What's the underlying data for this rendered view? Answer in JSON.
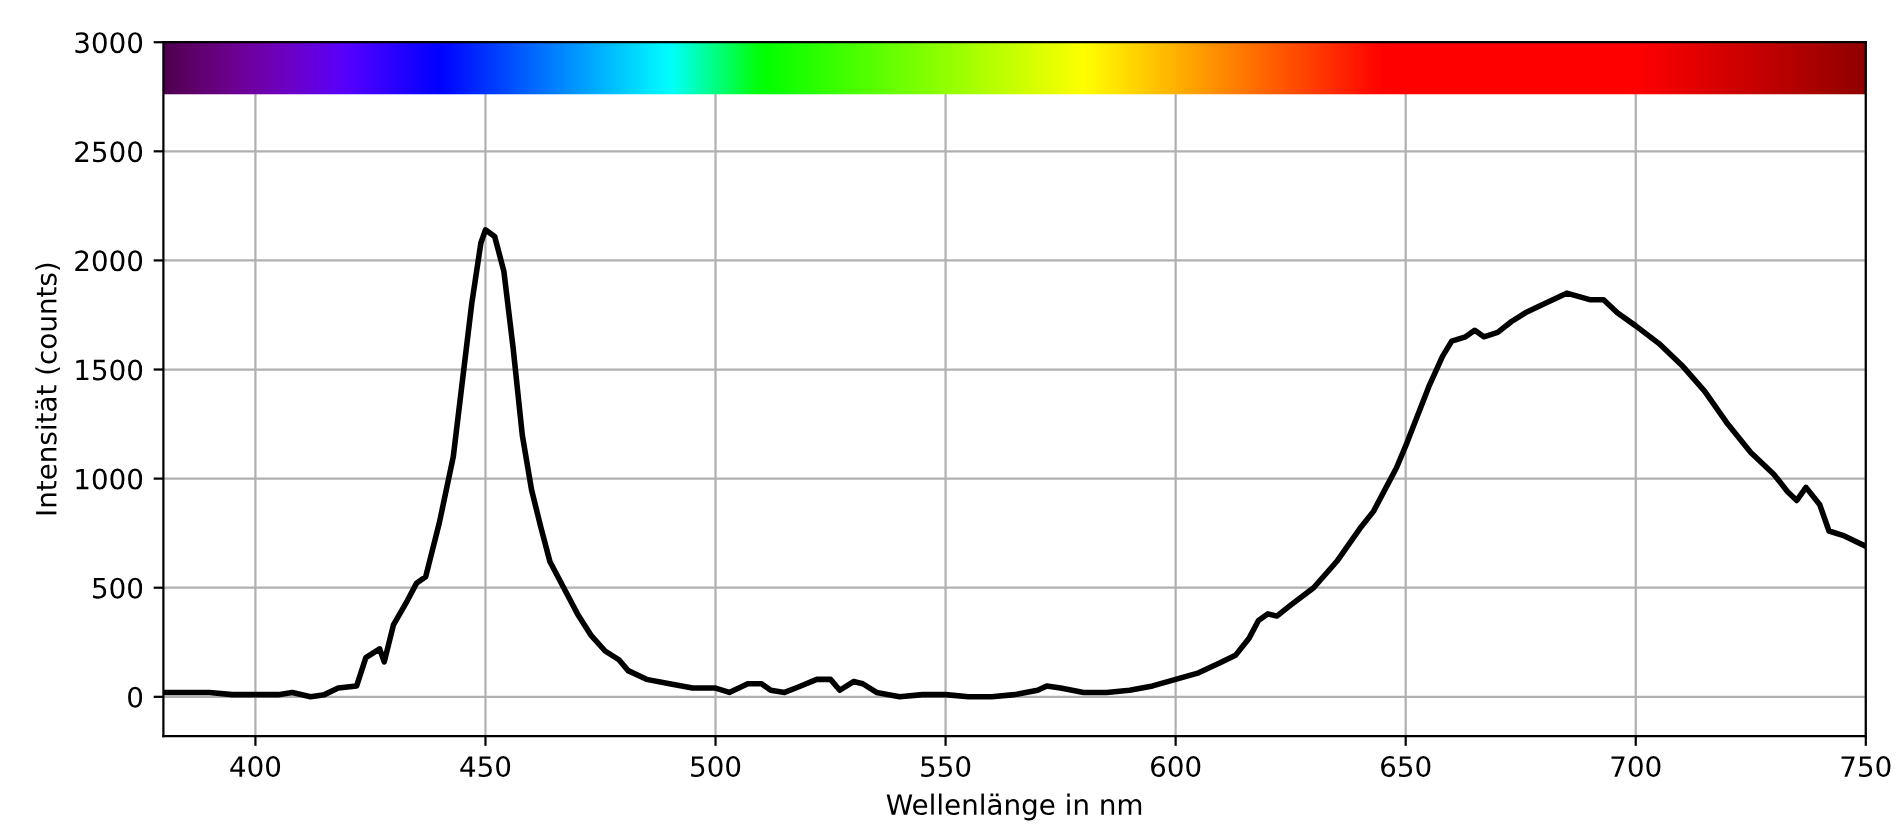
{
  "chart_data": {
    "type": "line",
    "xlabel": "Wellenlänge in nm",
    "ylabel": "Intensität (counts)",
    "xlim": [
      380,
      750
    ],
    "ylim": [
      -180,
      3000
    ],
    "xticks": [
      400,
      450,
      500,
      550,
      600,
      650,
      700,
      750
    ],
    "yticks": [
      0,
      500,
      1000,
      1500,
      2000,
      2500,
      3000
    ],
    "grid": true,
    "marker": "none",
    "line_style": "solid",
    "series": [
      {
        "color": "#000000",
        "x": [
          380,
          390,
          395,
          400,
          405,
          408,
          412,
          415,
          418,
          422,
          424,
          427,
          428,
          430,
          433,
          435,
          437,
          440,
          443,
          445,
          447,
          449,
          450,
          452,
          454,
          456,
          458,
          460,
          462,
          464,
          467,
          470,
          473,
          476,
          479,
          481,
          485,
          490,
          495,
          500,
          503,
          507,
          510,
          512,
          515,
          518,
          522,
          525,
          527,
          530,
          532,
          535,
          540,
          545,
          550,
          555,
          560,
          565,
          570,
          572,
          575,
          580,
          585,
          590,
          595,
          600,
          605,
          610,
          613,
          616,
          618,
          620,
          622,
          625,
          630,
          635,
          640,
          643,
          645,
          648,
          650,
          655,
          658,
          660,
          663,
          665,
          667,
          670,
          673,
          676,
          680,
          685,
          690,
          693,
          696,
          700,
          705,
          710,
          715,
          720,
          725,
          730,
          733,
          735,
          737,
          740,
          742,
          745,
          750
        ],
        "values": [
          20,
          20,
          10,
          10,
          10,
          20,
          0,
          10,
          40,
          50,
          180,
          220,
          160,
          330,
          440,
          520,
          550,
          800,
          1100,
          1450,
          1800,
          2080,
          2140,
          2110,
          1950,
          1600,
          1200,
          950,
          780,
          620,
          500,
          380,
          280,
          210,
          170,
          120,
          80,
          60,
          40,
          40,
          20,
          60,
          60,
          30,
          20,
          45,
          80,
          80,
          30,
          70,
          60,
          20,
          0,
          10,
          10,
          0,
          0,
          10,
          30,
          50,
          40,
          20,
          20,
          30,
          50,
          80,
          110,
          160,
          190,
          270,
          350,
          380,
          370,
          420,
          500,
          620,
          770,
          850,
          930,
          1050,
          1150,
          1420,
          1560,
          1630,
          1650,
          1680,
          1650,
          1670,
          1720,
          1760,
          1800,
          1850,
          1820,
          1820,
          1760,
          1700,
          1620,
          1520,
          1400,
          1250,
          1120,
          1020,
          940,
          900,
          960,
          880,
          760,
          740,
          690
        ]
      }
    ]
  }
}
